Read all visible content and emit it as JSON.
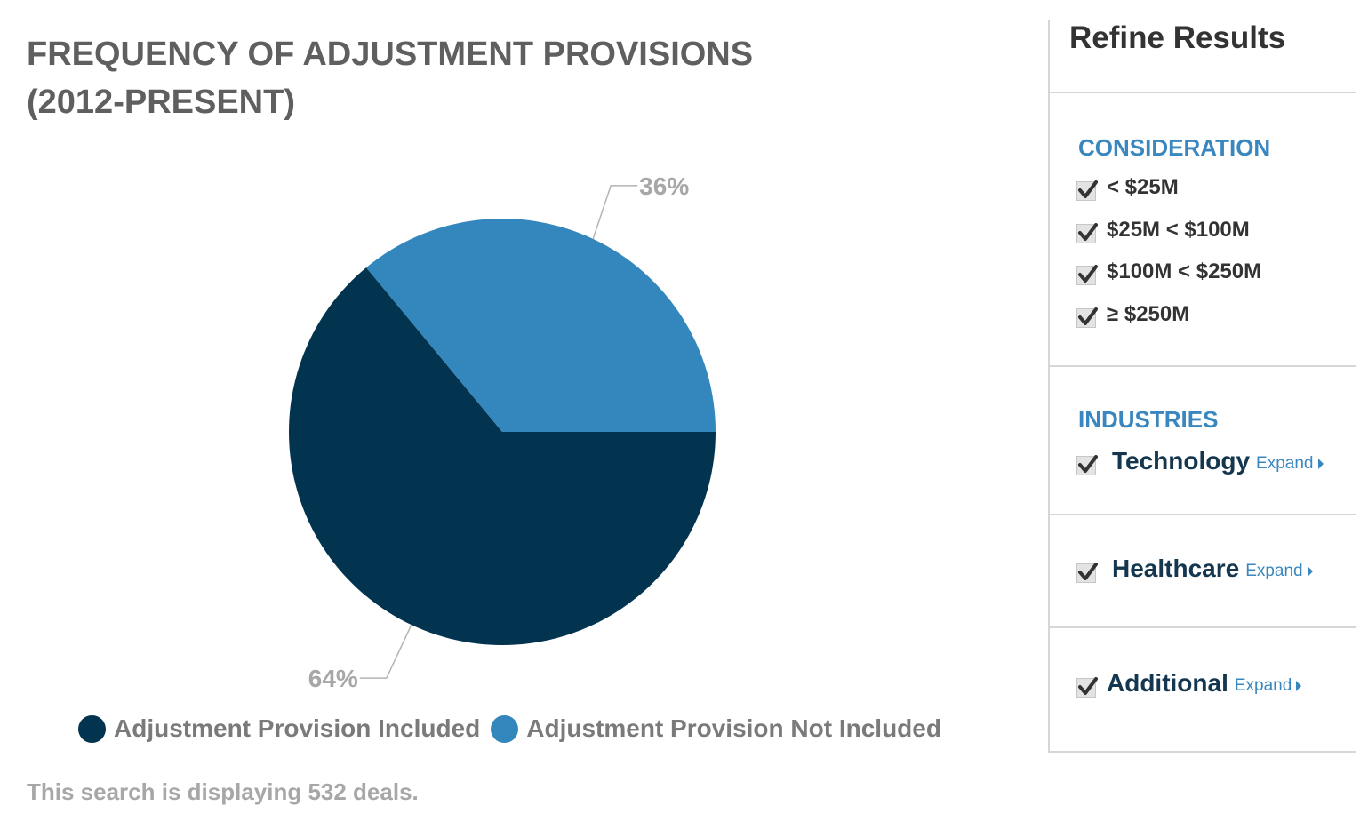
{
  "chart_data": {
    "type": "pie",
    "title": "FREQUENCY OF ADJUSTMENT PROVISIONS (2012-PRESENT)",
    "categories": [
      "Adjustment Provision Included",
      "Adjustment Provision Not Included"
    ],
    "values": [
      64,
      36
    ],
    "data_labels": [
      "64%",
      "36%"
    ],
    "colors": [
      "#02344f",
      "#3487bd"
    ],
    "legend_position": "bottom-left"
  },
  "footer": {
    "note": "This search is displaying 532 deals."
  },
  "sidebar": {
    "title": "Refine Results",
    "consideration": {
      "heading": "CONSIDERATION",
      "options": [
        "< $25M",
        "$25M < $100M",
        "$100M < $250M",
        "≥ $250M"
      ]
    },
    "industries": {
      "heading": "INDUSTRIES",
      "items": [
        {
          "label": "Technology",
          "expand": "Expand"
        },
        {
          "label": "Healthcare",
          "expand": "Expand"
        },
        {
          "label": "Additional",
          "expand": "Expand"
        }
      ]
    }
  },
  "colors": {
    "accent": "#3a87bf",
    "dark_series": "#02344f",
    "light_series": "#3487bd",
    "label_gray": "#a7a7a7"
  }
}
